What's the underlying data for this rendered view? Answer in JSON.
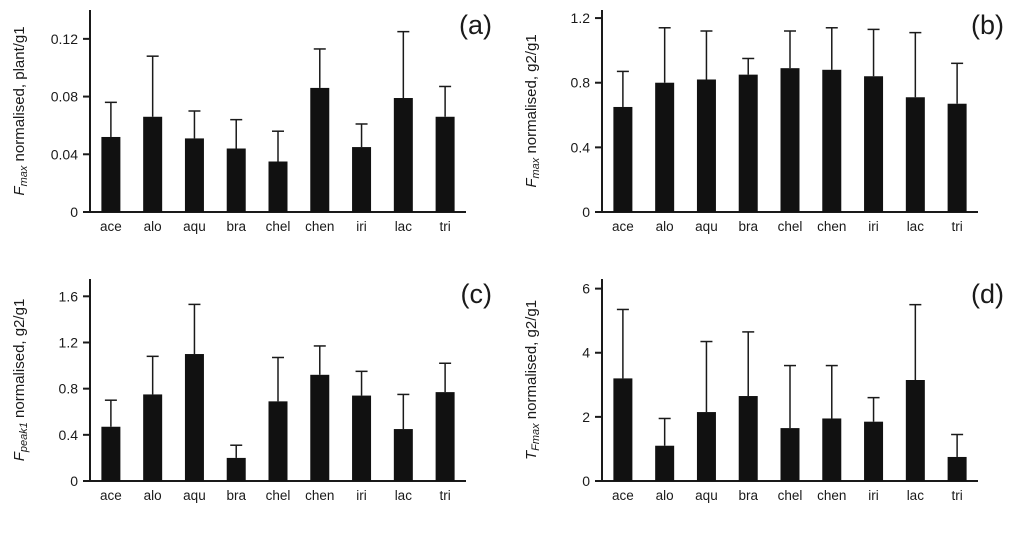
{
  "page": {
    "background": "#ffffff",
    "bar_color": "#111111",
    "axis_color": "#1a1a1a"
  },
  "chart_data": [
    {
      "panel_label": "(a)",
      "type": "bar",
      "categories": [
        "ace",
        "alo",
        "aqu",
        "bra",
        "chel",
        "chen",
        "iri",
        "lac",
        "tri"
      ],
      "values": [
        0.052,
        0.066,
        0.051,
        0.044,
        0.035,
        0.086,
        0.045,
        0.079,
        0.066
      ],
      "errors_plus": [
        0.024,
        0.042,
        0.019,
        0.02,
        0.021,
        0.027,
        0.016,
        0.046,
        0.021
      ],
      "ylabel": {
        "var": "F",
        "sub": "max",
        "rest": " normalised, plant/g1"
      },
      "xlabel": "",
      "ytick_labels": [
        "0",
        "0.04",
        "0.08",
        "0.12"
      ],
      "ylim": [
        0,
        0.14
      ],
      "grid": false,
      "legend": "none"
    },
    {
      "panel_label": "(b)",
      "type": "bar",
      "categories": [
        "ace",
        "alo",
        "aqu",
        "bra",
        "chel",
        "chen",
        "iri",
        "lac",
        "tri"
      ],
      "values": [
        0.65,
        0.8,
        0.82,
        0.85,
        0.89,
        0.88,
        0.84,
        0.71,
        0.67
      ],
      "errors_plus": [
        0.22,
        0.34,
        0.3,
        0.1,
        0.23,
        0.26,
        0.29,
        0.4,
        0.25
      ],
      "ylabel": {
        "var": "F",
        "sub": "max",
        "rest": " normalised, g2/g1"
      },
      "xlabel": "",
      "ytick_labels": [
        "0",
        "0.4",
        "0.8",
        "1.2"
      ],
      "ylim": [
        0,
        1.25
      ],
      "grid": false,
      "legend": "none"
    },
    {
      "panel_label": "(c)",
      "type": "bar",
      "categories": [
        "ace",
        "alo",
        "aqu",
        "bra",
        "chel",
        "chen",
        "iri",
        "lac",
        "tri"
      ],
      "values": [
        0.47,
        0.75,
        1.1,
        0.2,
        0.69,
        0.92,
        0.74,
        0.45,
        0.77
      ],
      "errors_plus": [
        0.23,
        0.33,
        0.43,
        0.11,
        0.38,
        0.25,
        0.21,
        0.3,
        0.25
      ],
      "ylabel": {
        "var": "F",
        "sub": "peak1",
        "rest": " normalised, g2/g1"
      },
      "xlabel": "",
      "ytick_labels": [
        "0",
        "0.4",
        "0.8",
        "1.2",
        "1.6"
      ],
      "ylim": [
        0,
        1.75
      ],
      "grid": false,
      "legend": "none"
    },
    {
      "panel_label": "(d)",
      "type": "bar",
      "categories": [
        "ace",
        "alo",
        "aqu",
        "bra",
        "chel",
        "chen",
        "iri",
        "lac",
        "tri"
      ],
      "values": [
        3.2,
        1.1,
        2.15,
        2.65,
        1.65,
        1.95,
        1.85,
        3.15,
        0.75
      ],
      "errors_plus": [
        2.15,
        0.85,
        2.2,
        2.0,
        1.95,
        1.65,
        0.75,
        2.35,
        0.7
      ],
      "ylabel": {
        "var": "T",
        "sub": "Fmax",
        "rest": " normalised, g2/g1"
      },
      "xlabel": "",
      "ytick_labels": [
        "0",
        "2",
        "4",
        "6"
      ],
      "ylim": [
        0,
        6.3
      ],
      "grid": false,
      "legend": "none"
    }
  ]
}
